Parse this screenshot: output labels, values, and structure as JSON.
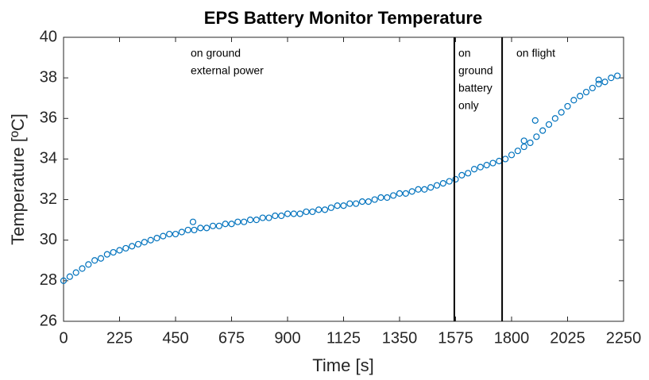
{
  "chart_data": {
    "type": "scatter",
    "title": "EPS Battery Monitor Temperature",
    "xlabel": "Time [s]",
    "ylabel": "Temperature [ºC]",
    "color": "#0072BD",
    "xlim": [
      0,
      2250
    ],
    "xticks": [
      0,
      225,
      450,
      675,
      900,
      1125,
      1350,
      1575,
      1800,
      2025,
      2250
    ],
    "ylim": [
      26,
      40
    ],
    "yticks": [
      26,
      28,
      30,
      32,
      34,
      36,
      38,
      40
    ],
    "grid": false,
    "vlines": [
      1570,
      1762
    ],
    "annotations": [
      [
        "on ground",
        "external power"
      ],
      [
        "on",
        "ground",
        "battery",
        "only"
      ],
      [
        "on flight"
      ]
    ],
    "x": [
      0,
      25,
      50,
      75,
      100,
      125,
      150,
      175,
      200,
      225,
      250,
      275,
      300,
      325,
      350,
      375,
      400,
      425,
      450,
      475,
      500,
      525,
      550,
      575,
      600,
      625,
      650,
      675,
      700,
      725,
      750,
      775,
      800,
      825,
      850,
      875,
      900,
      925,
      950,
      975,
      1000,
      1025,
      1050,
      1075,
      1100,
      1125,
      1150,
      1175,
      1200,
      1225,
      1250,
      1275,
      1300,
      1325,
      1350,
      1375,
      1400,
      1425,
      1450,
      1475,
      1500,
      1525,
      1550,
      1575,
      1600,
      1625,
      1650,
      1675,
      1700,
      1725,
      1750,
      1775,
      1800,
      1825,
      1850,
      1875,
      1900,
      1925,
      1950,
      1975,
      2000,
      2025,
      2050,
      2075,
      2100,
      2125,
      2150,
      2175,
      2200,
      2225,
      520,
      1850,
      1895,
      2150
    ],
    "values": [
      28.0,
      28.2,
      28.4,
      28.6,
      28.8,
      29.0,
      29.1,
      29.3,
      29.4,
      29.5,
      29.6,
      29.7,
      29.8,
      29.9,
      30.0,
      30.1,
      30.2,
      30.3,
      30.3,
      30.4,
      30.5,
      30.5,
      30.6,
      30.6,
      30.7,
      30.7,
      30.8,
      30.8,
      30.9,
      30.9,
      31.0,
      31.0,
      31.1,
      31.1,
      31.2,
      31.2,
      31.3,
      31.3,
      31.3,
      31.4,
      31.4,
      31.5,
      31.5,
      31.6,
      31.7,
      31.7,
      31.8,
      31.8,
      31.9,
      31.9,
      32.0,
      32.1,
      32.1,
      32.2,
      32.3,
      32.3,
      32.4,
      32.5,
      32.5,
      32.6,
      32.7,
      32.8,
      32.9,
      33.0,
      33.2,
      33.3,
      33.5,
      33.6,
      33.7,
      33.8,
      33.9,
      34.0,
      34.2,
      34.4,
      34.6,
      34.8,
      35.1,
      35.4,
      35.7,
      36.0,
      36.3,
      36.6,
      36.9,
      37.1,
      37.3,
      37.5,
      37.7,
      37.8,
      38.0,
      38.1,
      30.9,
      34.9,
      35.9,
      37.9
    ]
  }
}
